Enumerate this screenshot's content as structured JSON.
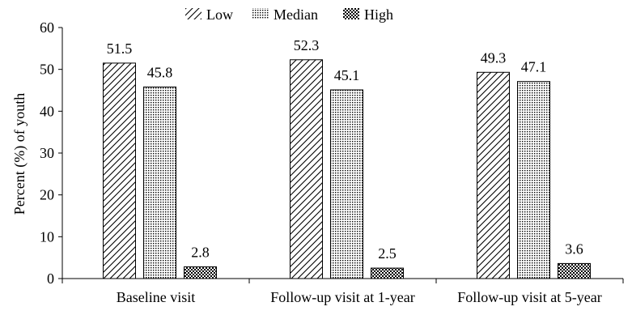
{
  "chart_data": {
    "type": "bar",
    "categories": [
      "Baseline visit",
      "Follow-up visit at 1-year",
      "Follow-up visit at 5-year"
    ],
    "series": [
      {
        "name": "Low",
        "values": [
          51.5,
          52.3,
          49.3
        ],
        "pattern": "diagonal-hatch"
      },
      {
        "name": "Median",
        "values": [
          45.8,
          45.1,
          47.1
        ],
        "pattern": "dots"
      },
      {
        "name": "High",
        "values": [
          2.8,
          2.5,
          3.6
        ],
        "pattern": "checker"
      }
    ],
    "data_labels": [
      [
        "51.5",
        "52.3",
        "49.3"
      ],
      [
        "45.8",
        "45.1",
        "47.1"
      ],
      [
        "2.8",
        "2.5",
        "3.6"
      ]
    ],
    "title": "",
    "xlabel": "",
    "ylabel": "Percent (%) of youth",
    "ylim": [
      0,
      60
    ],
    "yticks": [
      "0",
      "10",
      "20",
      "30",
      "40",
      "50",
      "60"
    ],
    "grid": false,
    "legend_position": "top"
  }
}
